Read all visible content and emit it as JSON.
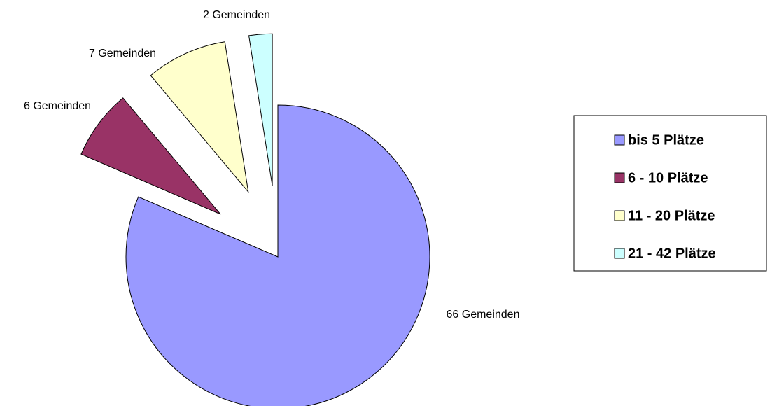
{
  "chart_data": {
    "type": "pie",
    "categories": [
      "bis 5 Plätze",
      "6 - 10 Plätze",
      "11 - 20 Plätze",
      "21 - 42 Plätze"
    ],
    "values": [
      66,
      6,
      7,
      2
    ],
    "value_labels": [
      "66 Gemeinden",
      "6 Gemeinden",
      "7 Gemeinden",
      "2 Gemeinden"
    ],
    "colors": [
      "#9999ff",
      "#993366",
      "#ffffcc",
      "#ccffff"
    ],
    "legend": "right"
  }
}
